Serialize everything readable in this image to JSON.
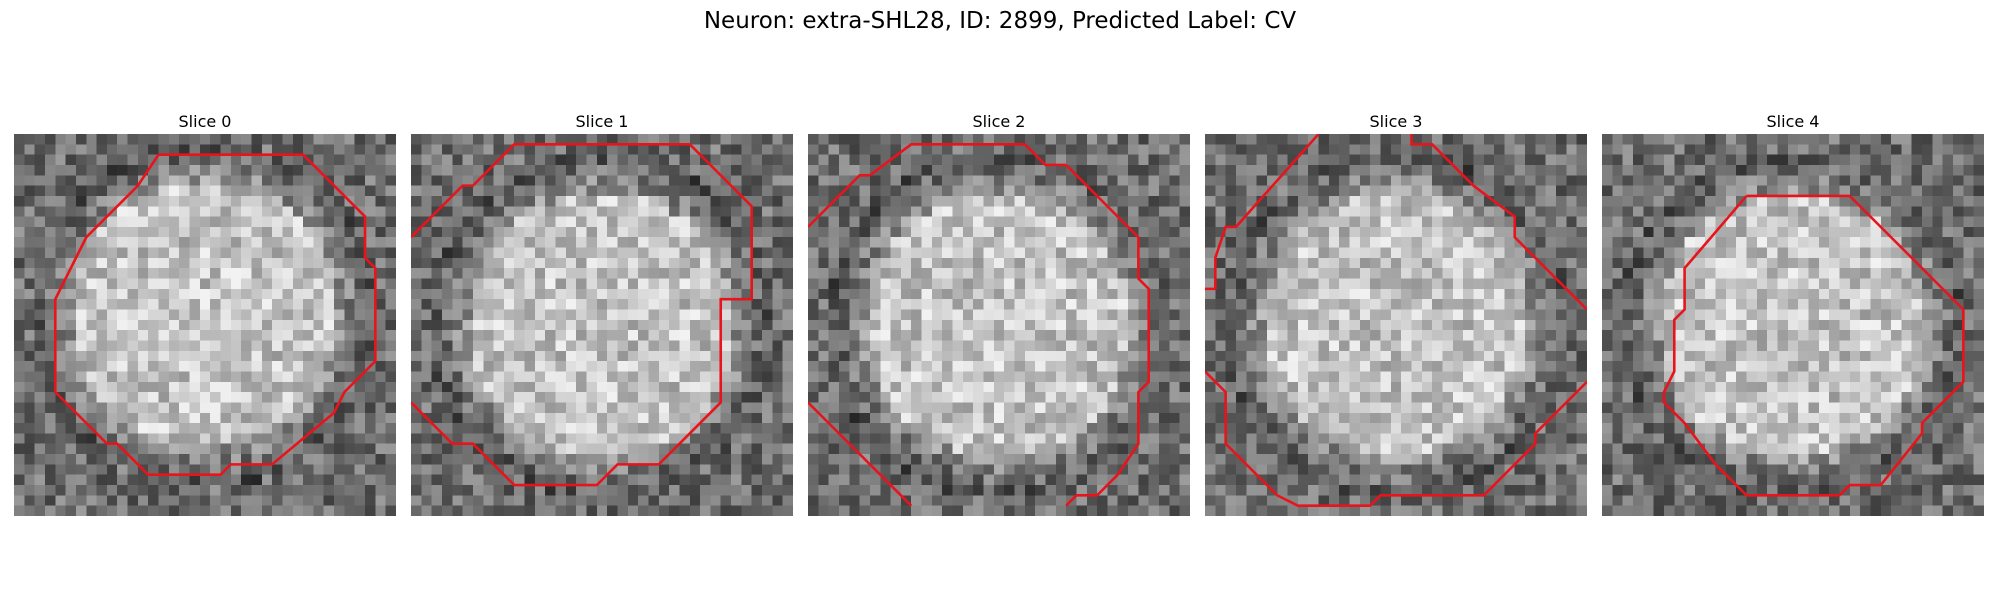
{
  "figure": {
    "title": "Neuron: extra-SHL28, ID: 2899, Predicted Label: CV"
  },
  "colors": {
    "contour": "#e8141c"
  },
  "slices": [
    {
      "title": "Slice 0",
      "seed": 11,
      "contour": [
        [
          [
            14,
            2
          ],
          [
            28,
            2
          ],
          [
            34,
            8
          ],
          [
            34,
            12
          ],
          [
            35,
            13
          ],
          [
            35,
            22
          ],
          [
            32,
            25
          ],
          [
            31,
            27
          ],
          [
            25,
            32
          ],
          [
            21,
            32
          ],
          [
            20,
            33
          ],
          [
            13,
            33
          ],
          [
            10,
            30
          ],
          [
            9,
            30
          ],
          [
            4,
            25
          ],
          [
            4,
            16
          ],
          [
            6,
            12
          ],
          [
            7,
            10
          ],
          [
            12,
            5
          ],
          [
            14,
            2
          ]
        ]
      ]
    },
    {
      "title": "Slice 1",
      "seed": 23,
      "contour": [
        [
          [
            0,
            10
          ],
          [
            5,
            5
          ],
          [
            6,
            5
          ],
          [
            10,
            1
          ],
          [
            27,
            1
          ],
          [
            31,
            5
          ],
          [
            33,
            7
          ],
          [
            33,
            16
          ],
          [
            30,
            16
          ],
          [
            30,
            26
          ],
          [
            24,
            32
          ],
          [
            20,
            32
          ],
          [
            18,
            34
          ],
          [
            10,
            34
          ],
          [
            6,
            30
          ],
          [
            4,
            30
          ],
          [
            0,
            26
          ]
        ]
      ]
    },
    {
      "title": "Slice 2",
      "seed": 37,
      "contour": [
        [
          [
            0,
            9
          ],
          [
            5,
            4
          ],
          [
            6,
            4
          ],
          [
            10,
            1
          ],
          [
            21,
            1
          ],
          [
            23,
            3
          ],
          [
            25,
            3
          ]
        ],
        [
          [
            25,
            3
          ],
          [
            28,
            6
          ],
          [
            32,
            10
          ],
          [
            32,
            14
          ],
          [
            33,
            15
          ],
          [
            33,
            24
          ],
          [
            32,
            25
          ],
          [
            32,
            30
          ],
          [
            30,
            33
          ],
          [
            28,
            35
          ],
          [
            26,
            35
          ],
          [
            25,
            36
          ]
        ],
        [
          [
            0,
            26
          ],
          [
            10,
            36
          ]
        ]
      ]
    },
    {
      "title": "Slice 3",
      "seed": 53,
      "contour": [
        [
          [
            11,
            0
          ],
          [
            3,
            9
          ],
          [
            2,
            9
          ],
          [
            1,
            12
          ],
          [
            1,
            15
          ],
          [
            0,
            15
          ]
        ],
        [
          [
            20,
            0
          ],
          [
            20,
            1
          ],
          [
            22,
            1
          ],
          [
            25,
            4
          ],
          [
            26,
            5
          ],
          [
            30,
            8
          ],
          [
            30,
            10
          ],
          [
            37,
            17
          ]
        ],
        [
          [
            0,
            23
          ],
          [
            2,
            25
          ],
          [
            2,
            30
          ],
          [
            7,
            35
          ],
          [
            9,
            36
          ],
          [
            16,
            36
          ],
          [
            17,
            35
          ],
          [
            27,
            35
          ],
          [
            32,
            30
          ],
          [
            32,
            29
          ],
          [
            37,
            24
          ]
        ]
      ]
    },
    {
      "title": "Slice 4",
      "seed": 71,
      "contour": [
        [
          [
            14,
            6
          ],
          [
            24,
            6
          ],
          [
            28,
            10
          ],
          [
            30,
            12
          ],
          [
            35,
            17
          ],
          [
            35,
            24
          ],
          [
            31,
            28
          ],
          [
            31,
            29
          ],
          [
            27,
            34
          ],
          [
            24,
            34
          ],
          [
            23,
            35
          ],
          [
            14,
            35
          ],
          [
            11,
            32
          ],
          [
            8,
            28
          ],
          [
            6,
            26
          ],
          [
            6,
            25
          ],
          [
            7,
            23
          ],
          [
            7,
            18
          ],
          [
            8,
            17
          ],
          [
            8,
            13
          ],
          [
            14,
            6
          ]
        ]
      ]
    }
  ]
}
